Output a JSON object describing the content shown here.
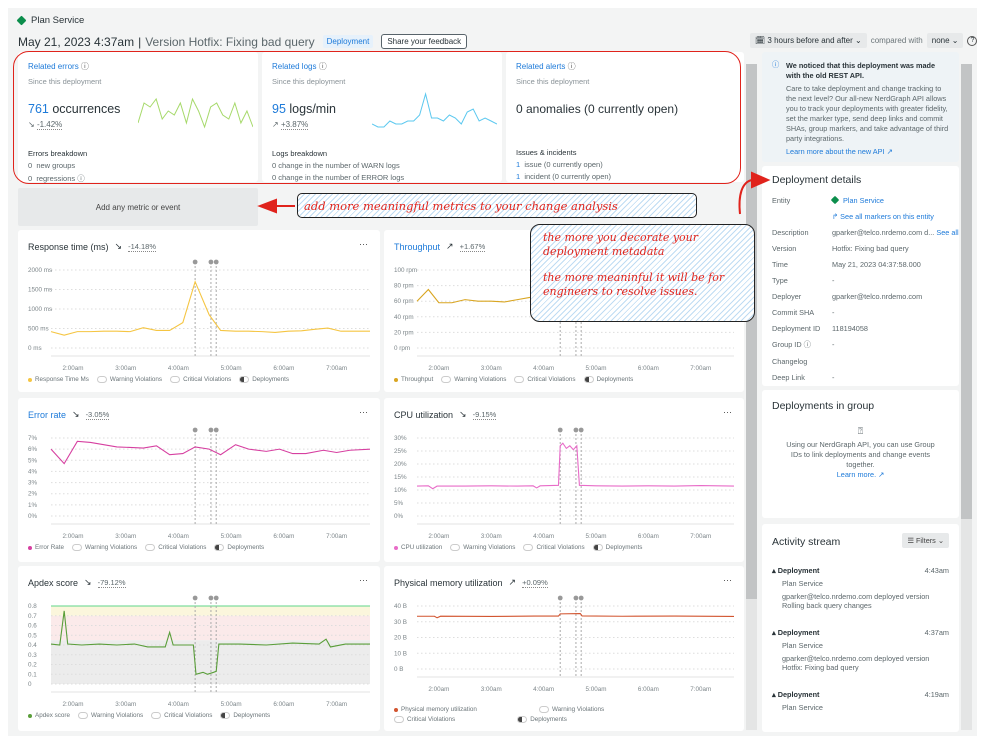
{
  "entity": {
    "name": "Plan Service",
    "status_color": "#0c8e4c"
  },
  "header": {
    "date": "May 21, 2023 4:37am",
    "separator": "|",
    "version": "Version Hotfix: Fixing bad query",
    "badge": "Deployment",
    "feedback": "Share your feedback"
  },
  "timepicker": {
    "range": "3 hours before and after",
    "compared_label": "compared with",
    "compared_value": "none"
  },
  "summary": {
    "errors": {
      "title": "Related errors",
      "sub": "Since this deployment",
      "value": "761",
      "unit": "occurrences",
      "change": "-1.42%",
      "trend": "down",
      "breakdown_title": "Errors breakdown",
      "rows": [
        {
          "n": "0",
          "t": "new groups"
        },
        {
          "n": "0",
          "t": "regressions"
        }
      ],
      "sparkline": [
        3,
        8,
        7,
        9,
        4,
        6,
        5,
        8,
        3,
        9,
        6,
        2,
        7,
        8,
        5,
        4,
        8,
        3,
        6,
        2
      ],
      "color": "#a6d96a"
    },
    "logs": {
      "title": "Related logs",
      "sub": "Since this deployment",
      "value": "95",
      "unit": "logs/min",
      "change": "+3.87%",
      "trend": "up",
      "breakdown_title": "Logs breakdown",
      "rows": [
        {
          "n": "0",
          "t": "change in the number of WARN logs"
        },
        {
          "n": "0",
          "t": "change in the number of ERROR logs"
        }
      ],
      "sparkline": [
        2,
        1,
        1,
        3,
        2,
        2,
        3,
        3,
        5,
        12,
        4,
        4,
        3,
        5,
        4,
        2,
        6,
        7,
        3,
        4,
        3,
        2
      ],
      "color": "#5bc8ef"
    },
    "alerts": {
      "title": "Related alerts",
      "sub": "Since this deployment",
      "value": "0 anomalies (0 currently open)",
      "breakdown_title": "Issues & incidents",
      "rows": [
        {
          "n": "1",
          "t": "issue (0 currently open)"
        },
        {
          "n": "1",
          "t": "incident (0 currently open)"
        }
      ]
    }
  },
  "add_metric": "Add any metric or event",
  "annotations": {
    "metrics": "add more meaningful metrics to your change analysis",
    "decorate_1": "the more you decorate your deployment metadata",
    "decorate_2": "the more meaninful it will be for engineers to resolve issues.",
    "color": "#e0231c"
  },
  "legend": {
    "warning": "Warning Violations",
    "critical": "Critical Violations",
    "deployments": "Deployments"
  },
  "chart_data": [
    {
      "type": "line",
      "title": "Response time (ms)",
      "title_link": false,
      "change": "-14.18%",
      "trend": "down",
      "series_name": "Response Time Ms",
      "color": "#f5c542",
      "ylim": [
        0,
        2000
      ],
      "yticks": [
        "0 ms",
        "500 ms",
        "1000 ms",
        "1500 ms",
        "2000 ms"
      ],
      "xticks": [
        "2:00am",
        "3:00am",
        "4:00am",
        "5:00am",
        "6:00am",
        "7:00am"
      ],
      "xrange": [
        "1:35",
        "7:38"
      ],
      "deployments": [
        "4:19",
        "4:37",
        "4:43"
      ],
      "points": [
        [
          "1:35",
          420
        ],
        [
          "1:50",
          330
        ],
        [
          "2:05",
          420
        ],
        [
          "2:20",
          420
        ],
        [
          "2:35",
          430
        ],
        [
          "2:50",
          430
        ],
        [
          "3:05",
          420
        ],
        [
          "3:20",
          520
        ],
        [
          "3:35",
          450
        ],
        [
          "3:50",
          450
        ],
        [
          "4:05",
          650
        ],
        [
          "4:19",
          1700
        ],
        [
          "4:35",
          850
        ],
        [
          "4:48",
          450
        ],
        [
          "5:05",
          430
        ],
        [
          "5:20",
          430
        ],
        [
          "5:35",
          420
        ],
        [
          "5:50",
          400
        ],
        [
          "6:05",
          430
        ],
        [
          "6:20",
          440
        ],
        [
          "6:35",
          480
        ],
        [
          "6:50",
          510
        ],
        [
          "7:05",
          430
        ],
        [
          "7:20",
          430
        ],
        [
          "7:38",
          430
        ]
      ]
    },
    {
      "type": "line",
      "title": "Throughput",
      "title_link": true,
      "change": "+1.67%",
      "trend": "up",
      "series_name": "Throughput",
      "color": "#d9a520",
      "ylim": [
        0,
        100
      ],
      "yticks": [
        "0 rpm",
        "20 rpm",
        "40 rpm",
        "60 rpm",
        "80 rpm",
        "100 rpm"
      ],
      "xticks": [
        "2:00am",
        "3:00am",
        "4:00am",
        "5:00am",
        "6:00am",
        "7:00am"
      ],
      "xrange": [
        "1:35",
        "7:38"
      ],
      "deployments": [
        "4:19",
        "4:37",
        "4:43"
      ],
      "points": [
        [
          "1:35",
          60
        ],
        [
          "1:48",
          75
        ],
        [
          "2:00",
          58
        ],
        [
          "2:15",
          58
        ],
        [
          "2:30",
          62
        ],
        [
          "2:45",
          60
        ],
        [
          "3:00",
          60
        ],
        [
          "3:15",
          59
        ],
        [
          "3:30",
          62
        ],
        [
          "3:45",
          65
        ],
        [
          "4:00",
          68
        ],
        [
          "4:15",
          66
        ],
        [
          "4:30",
          62
        ],
        [
          "4:45",
          65
        ],
        [
          "5:00",
          68
        ],
        [
          "5:15",
          63
        ],
        [
          "5:30",
          67
        ],
        [
          "5:45",
          66
        ],
        [
          "6:00",
          65
        ],
        [
          "6:15",
          68
        ],
        [
          "6:30",
          70
        ],
        [
          "6:45",
          66
        ],
        [
          "7:00",
          66
        ],
        [
          "7:15",
          67
        ],
        [
          "7:38",
          66
        ]
      ]
    },
    {
      "type": "line",
      "title": "Error rate",
      "title_link": true,
      "change": "-3.05%",
      "trend": "down",
      "series_name": "Error Rate",
      "color": "#d63fa0",
      "ylim": [
        0,
        7
      ],
      "yticks": [
        "0%",
        "1%",
        "2%",
        "3%",
        "4%",
        "5%",
        "6%",
        "7%"
      ],
      "xticks": [
        "2:00am",
        "3:00am",
        "4:00am",
        "5:00am",
        "6:00am",
        "7:00am"
      ],
      "xrange": [
        "1:35",
        "7:38"
      ],
      "deployments": [
        "4:19",
        "4:37",
        "4:43"
      ],
      "points": [
        [
          "1:35",
          6.0
        ],
        [
          "1:50",
          4.7
        ],
        [
          "2:05",
          6.7
        ],
        [
          "2:20",
          6.6
        ],
        [
          "2:35",
          6.4
        ],
        [
          "2:50",
          6.2
        ],
        [
          "3:05",
          6.15
        ],
        [
          "3:20",
          6.1
        ],
        [
          "3:35",
          6.3
        ],
        [
          "3:50",
          5.5
        ],
        [
          "4:05",
          5.6
        ],
        [
          "4:19",
          6.2
        ],
        [
          "4:35",
          6.0
        ],
        [
          "4:48",
          5.5
        ],
        [
          "5:05",
          6.4
        ],
        [
          "5:20",
          6.0
        ],
        [
          "5:40",
          5.8
        ],
        [
          "5:55",
          6.0
        ],
        [
          "6:10",
          5.6
        ],
        [
          "6:25",
          5.6
        ],
        [
          "6:45",
          5.9
        ],
        [
          "7:00",
          5.7
        ],
        [
          "7:15",
          5.9
        ],
        [
          "7:38",
          6.0
        ]
      ]
    },
    {
      "type": "line",
      "title": "CPU utilization",
      "title_link": false,
      "change": "-9.15%",
      "trend": "down",
      "series_name": "CPU utilization",
      "color": "#e86cc8",
      "ylim": [
        0,
        30
      ],
      "yticks": [
        "0%",
        "5%",
        "10%",
        "15%",
        "20%",
        "25%",
        "30%"
      ],
      "xticks": [
        "2:00am",
        "3:00am",
        "4:00am",
        "5:00am",
        "6:00am",
        "7:00am"
      ],
      "xrange": [
        "1:35",
        "7:38"
      ],
      "deployments": [
        "4:19",
        "4:37",
        "4:43"
      ],
      "points": [
        [
          "1:35",
          11.5
        ],
        [
          "1:48",
          11.6
        ],
        [
          "1:53",
          10.5
        ],
        [
          "1:58",
          11.5
        ],
        [
          "2:30",
          11.5
        ],
        [
          "3:00",
          11.6
        ],
        [
          "3:30",
          11.5
        ],
        [
          "3:48",
          11.6
        ],
        [
          "3:52",
          10.8
        ],
        [
          "3:56",
          11.6
        ],
        [
          "4:17",
          11.8
        ],
        [
          "4:19",
          27
        ],
        [
          "4:22",
          28
        ],
        [
          "4:26",
          26
        ],
        [
          "4:30",
          27
        ],
        [
          "4:34",
          25.5
        ],
        [
          "4:38",
          27
        ],
        [
          "4:41",
          11.8
        ],
        [
          "5:00",
          11.6
        ],
        [
          "5:30",
          11.5
        ],
        [
          "6:00",
          11.6
        ],
        [
          "6:30",
          11.5
        ],
        [
          "7:00",
          11.7
        ],
        [
          "7:38",
          11.5
        ]
      ]
    },
    {
      "type": "line",
      "title": "Apdex score",
      "title_link": false,
      "change": "-79.12%",
      "trend": "down",
      "series_name": "Apdex score",
      "color": "#5a9e3a",
      "ylim": [
        0,
        0.8
      ],
      "yticks": [
        "0",
        "0.1",
        "0.2",
        "0.3",
        "0.4",
        "0.5",
        "0.6",
        "0.7",
        "0.8"
      ],
      "xticks": [
        "2:00am",
        "3:00am",
        "4:00am",
        "5:00am",
        "6:00am",
        "7:00am"
      ],
      "xrange": [
        "1:35",
        "7:38"
      ],
      "deployments": [
        "4:19",
        "4:37",
        "4:43"
      ],
      "bands": [
        {
          "from": 0,
          "to": 0.45,
          "color": "#ececec"
        },
        {
          "from": 0.45,
          "to": 0.7,
          "color": "#fbeaea"
        },
        {
          "from": 0.7,
          "to": 0.8,
          "color": "#fbf6dc"
        }
      ],
      "threshold": {
        "value": 0.8,
        "color": "#5fd68a"
      },
      "points": [
        [
          "1:35",
          0.41
        ],
        [
          "1:45",
          0.4
        ],
        [
          "1:50",
          0.75
        ],
        [
          "1:54",
          0.41
        ],
        [
          "2:10",
          0.4
        ],
        [
          "2:30",
          0.41
        ],
        [
          "2:50",
          0.4
        ],
        [
          "3:10",
          0.41
        ],
        [
          "3:25",
          0.38
        ],
        [
          "3:45",
          0.38
        ],
        [
          "3:50",
          0.53
        ],
        [
          "3:54",
          0.4
        ],
        [
          "4:10",
          0.4
        ],
        [
          "4:17",
          0.4
        ],
        [
          "4:20",
          0.1
        ],
        [
          "4:28",
          0.12
        ],
        [
          "4:33",
          0.1
        ],
        [
          "4:40",
          0.12
        ],
        [
          "4:43",
          0.13
        ],
        [
          "4:46",
          0.41
        ],
        [
          "5:10",
          0.41
        ],
        [
          "5:40",
          0.4
        ],
        [
          "6:10",
          0.42
        ],
        [
          "6:40",
          0.41
        ],
        [
          "6:48",
          0.46
        ],
        [
          "6:53",
          0.38
        ],
        [
          "7:10",
          0.41
        ],
        [
          "7:38",
          0.41
        ]
      ]
    },
    {
      "type": "line",
      "title": "Physical memory utilization",
      "title_link": false,
      "change": "+0.09%",
      "trend": "up",
      "series_name": "Physical memory utilization",
      "color": "#d2542f",
      "ylim": [
        0,
        40
      ],
      "yticks": [
        "0 B",
        "10 B",
        "20 B",
        "30 B",
        "40 B"
      ],
      "xticks": [
        "2:00am",
        "3:00am",
        "4:00am",
        "5:00am",
        "6:00am",
        "7:00am"
      ],
      "xrange": [
        "1:35",
        "7:38"
      ],
      "deployments": [
        "4:19",
        "4:37",
        "4:43"
      ],
      "points": [
        [
          "1:35",
          33.5
        ],
        [
          "1:55",
          33.5
        ],
        [
          "1:58",
          32.5
        ],
        [
          "2:02",
          33.5
        ],
        [
          "3:00",
          33.4
        ],
        [
          "3:50",
          33.6
        ],
        [
          "4:17",
          33.6
        ],
        [
          "4:19",
          35
        ],
        [
          "4:42",
          35.2
        ],
        [
          "4:44",
          33.7
        ],
        [
          "5:30",
          33.5
        ],
        [
          "6:30",
          33.6
        ],
        [
          "7:38",
          33.4
        ]
      ]
    }
  ],
  "right": {
    "notice": {
      "title": "We noticed that this deployment was made with the old REST API.",
      "body": "Care to take deployment and change tracking to the next level? Our all-new NerdGraph API allows you to track your deployments with greater fidelity, set the marker type, send deep links and commit SHAs, group markers, and take advantage of third party integrations.",
      "link": "Learn more about the new API"
    },
    "details": {
      "title": "Deployment details",
      "entity_label": "Entity",
      "entity": "Plan Service",
      "markers_link": "See all markers on this entity",
      "rows": [
        {
          "k": "Description",
          "v": "gparker@telco.nrdemo.com d...",
          "extra": "See all"
        },
        {
          "k": "Version",
          "v": "Hotfix: Fixing bad query"
        },
        {
          "k": "Time",
          "v": "May 21, 2023 04:37:58.000"
        },
        {
          "k": "Type",
          "v": "-"
        },
        {
          "k": "Deployer",
          "v": "gparker@telco.nrdemo.com"
        },
        {
          "k": "Commit SHA",
          "v": "-"
        },
        {
          "k": "Deployment ID",
          "v": "118194058"
        },
        {
          "k": "Group ID",
          "v": "-"
        },
        {
          "k": "Changelog",
          "v": ""
        },
        {
          "k": "Deep Link",
          "v": "-"
        }
      ]
    },
    "group": {
      "title": "Deployments in group",
      "body": "Using our NerdGraph API, you can use Group IDs to link deployments and change events together.",
      "link": "Learn more."
    },
    "activity": {
      "title": "Activity stream",
      "filters": "Filters",
      "items": [
        {
          "type": "Deployment",
          "time": "4:43am",
          "entity": "Plan Service",
          "text": "gparker@telco.nrdemo.com deployed version",
          "version": "Rolling back query changes"
        },
        {
          "type": "Deployment",
          "time": "4:37am",
          "entity": "Plan Service",
          "text": "gparker@telco.nrdemo.com deployed version",
          "version": "Hotfix: Fixing bad query"
        },
        {
          "type": "Deployment",
          "time": "4:19am",
          "entity": "Plan Service"
        }
      ]
    }
  }
}
